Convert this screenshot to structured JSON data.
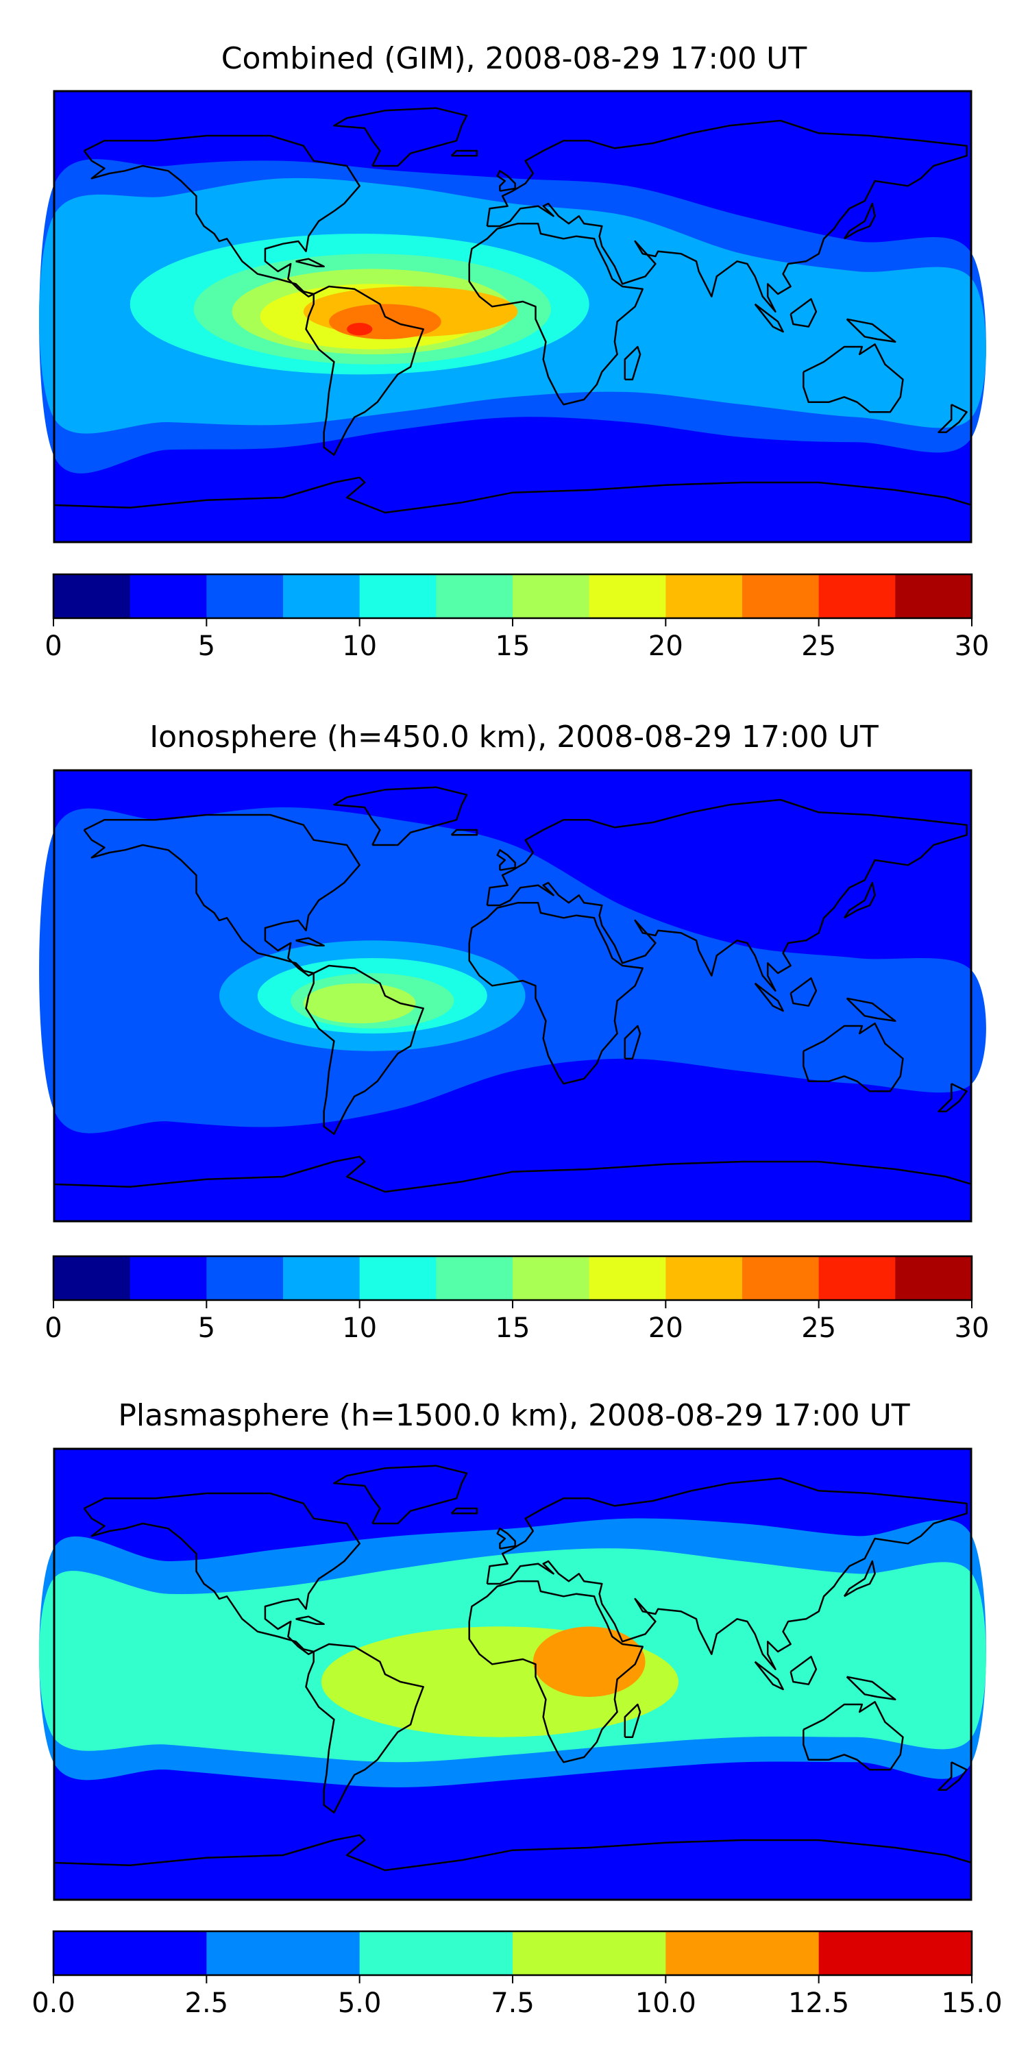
{
  "panels": [
    {
      "title": "Combined (GIM), 2008-08-29 17:00 UT",
      "colorbar": {
        "ticks": [
          "0",
          "5",
          "10",
          "15",
          "20",
          "25",
          "30"
        ],
        "colors": [
          "#00008f",
          "#0000ff",
          "#0055ff",
          "#00aaff",
          "#1affe6",
          "#55ffaa",
          "#aaff55",
          "#e6ff1a",
          "#ffbb00",
          "#ff7700",
          "#ff2200",
          "#aa0000"
        ]
      },
      "contours": [
        {
          "level": 2.5,
          "shape": "band-full",
          "from": [
            -180,
            90
          ],
          "to": [
            180,
            -90
          ]
        },
        {
          "level": 5,
          "shape": "band",
          "lat_north": [
            52,
            60,
            62,
            58,
            55,
            52,
            40,
            30,
            25
          ],
          "lat_south": [
            -55,
            -53,
            -52,
            -45,
            -40,
            -42,
            -48,
            -50,
            -48
          ]
        },
        {
          "level": 7.5,
          "shape": "band",
          "lat_north": [
            40,
            48,
            55,
            52,
            45,
            40,
            25,
            18,
            15
          ],
          "lat_south": [
            -40,
            -42,
            -43,
            -38,
            -32,
            -30,
            -35,
            -40,
            -40
          ]
        },
        {
          "level": 10,
          "shape": "blob",
          "center": [
            -60,
            5
          ],
          "radii": [
            90,
            28
          ]
        },
        {
          "level": 12.5,
          "shape": "blob",
          "center": [
            -55,
            3
          ],
          "radii": [
            70,
            22
          ]
        },
        {
          "level": 15,
          "shape": "blob",
          "center": [
            -55,
            2
          ],
          "radii": [
            55,
            17
          ]
        },
        {
          "level": 17.5,
          "shape": "blob",
          "center": [
            -55,
            0
          ],
          "radii": [
            44,
            13
          ]
        },
        {
          "level": 20,
          "shape": "blob",
          "center": [
            -40,
            2
          ],
          "radii": [
            42,
            10
          ]
        },
        {
          "level": 22.5,
          "shape": "blob",
          "center": [
            -50,
            -2
          ],
          "radii": [
            22,
            7
          ]
        },
        {
          "level": 25,
          "shape": "blob",
          "center": [
            -60,
            -5
          ],
          "radii": [
            5,
            2.5
          ]
        }
      ]
    },
    {
      "title": "Ionosphere  (h=450.0 km), 2008-08-29 17:00 UT",
      "colorbar": {
        "ticks": [
          "0",
          "5",
          "10",
          "15",
          "20",
          "25",
          "30"
        ],
        "colors": [
          "#00008f",
          "#0000ff",
          "#0055ff",
          "#00aaff",
          "#1affe6",
          "#55ffaa",
          "#aaff55",
          "#e6ff1a",
          "#ffbb00",
          "#ff7700",
          "#ff2200",
          "#aa0000"
        ]
      },
      "contours": [
        {
          "level": 2.5,
          "shape": "band-full",
          "from": [
            -180,
            90
          ],
          "to": [
            180,
            -90
          ]
        },
        {
          "level": 5,
          "shape": "band",
          "lat_north": [
            65,
            70,
            75,
            70,
            60,
            35,
            20,
            15,
            10
          ],
          "lat_south": [
            -45,
            -50,
            -52,
            -45,
            -30,
            -25,
            -30,
            -35,
            -35
          ]
        },
        {
          "level": 7.5,
          "shape": "blob",
          "center": [
            -55,
            0
          ],
          "radii": [
            60,
            22
          ]
        },
        {
          "level": 10,
          "shape": "blob",
          "center": [
            -55,
            0
          ],
          "radii": [
            45,
            15
          ]
        },
        {
          "level": 12.5,
          "shape": "blob",
          "center": [
            -55,
            -2
          ],
          "radii": [
            32,
            11
          ]
        },
        {
          "level": 15,
          "shape": "blob",
          "center": [
            -60,
            -3
          ],
          "radii": [
            22,
            8
          ]
        }
      ]
    },
    {
      "title": "Plasmasphere (h=1500.0 km), 2008-08-29 17:00 UT",
      "colorbar": {
        "ticks": [
          "0.0",
          "2.5",
          "5.0",
          "7.5",
          "10.0",
          "12.5",
          "15.0"
        ],
        "colors": [
          "#0000ff",
          "#0088ff",
          "#33ffcc",
          "#bbff33",
          "#ff9900",
          "#dd0000"
        ]
      },
      "contours": [
        {
          "level": 2.5,
          "shape": "band",
          "lat_north": [
            50,
            45,
            50,
            55,
            58,
            62,
            60,
            55,
            55
          ],
          "lat_south": [
            -35,
            -38,
            -42,
            -45,
            -42,
            -38,
            -35,
            -35,
            -35
          ]
        },
        {
          "level": 5,
          "shape": "band",
          "lat_north": [
            38,
            32,
            35,
            42,
            48,
            50,
            45,
            40,
            40
          ],
          "lat_south": [
            -25,
            -28,
            -32,
            -35,
            -32,
            -28,
            -25,
            -25,
            -25
          ]
        },
        {
          "level": 7.5,
          "shape": "blob",
          "center": [
            -5,
            -3
          ],
          "radii": [
            70,
            22
          ]
        },
        {
          "level": 10,
          "shape": "blob",
          "center": [
            30,
            5
          ],
          "radii": [
            22,
            14
          ]
        }
      ]
    }
  ],
  "map_colors": {
    "frame": "#000000",
    "coastline": "#000000"
  }
}
